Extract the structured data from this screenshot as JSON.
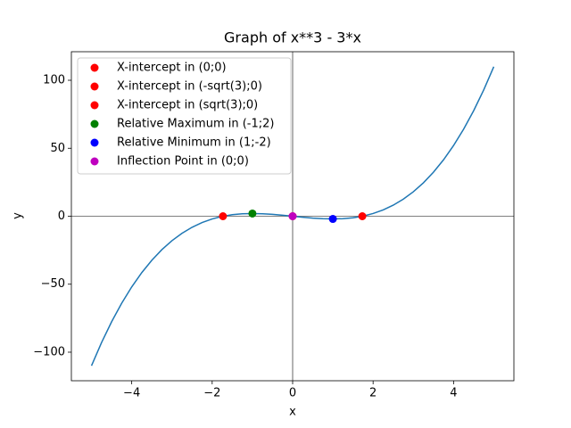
{
  "chart_data": {
    "type": "line",
    "title": "Graph of x**3 - 3*x",
    "x_label": "x",
    "y_label": "y",
    "xlim": [
      -5.5,
      5.5
    ],
    "ylim": [
      -121,
      121
    ],
    "xticks": [
      {
        "value": -4,
        "label": "−4"
      },
      {
        "value": -2,
        "label": "−2"
      },
      0,
      2,
      4
    ],
    "yticks": [
      {
        "value": -100,
        "label": "−100"
      },
      {
        "value": -50,
        "label": "−50"
      },
      0,
      50,
      100
    ],
    "zero_lines": true,
    "legend": "upper left",
    "series": [
      {
        "type": "line",
        "color": "#1f77b4",
        "x": [
          -5,
          -4.75,
          -4.5,
          -4.25,
          -4,
          -3.75,
          -3.5,
          -3.25,
          -3,
          -2.75,
          -2.5,
          -2.25,
          -2,
          -1.75,
          -1.5,
          -1.25,
          -1,
          -0.75,
          -0.5,
          -0.25,
          0,
          0.25,
          0.5,
          0.75,
          1,
          1.25,
          1.5,
          1.75,
          2,
          2.25,
          2.5,
          2.75,
          3,
          3.25,
          3.5,
          3.75,
          4,
          4.25,
          4.5,
          4.75,
          5
        ],
        "values": [
          -110,
          -92.921875,
          -77.625,
          -64.015625,
          -52,
          -41.484375,
          -32.375,
          -24.578125,
          -18,
          -12.546875,
          -8.125,
          -4.640625,
          -2,
          -0.109375,
          1.125,
          1.796875,
          2,
          1.828125,
          1.375,
          0.734375,
          0,
          -0.734375,
          -1.375,
          -1.828125,
          -2,
          -1.796875,
          -1.125,
          0.109375,
          2,
          4.640625,
          8.125,
          12.546875,
          18,
          24.578125,
          32.375,
          41.484375,
          52,
          64.015625,
          77.625,
          92.921875,
          110
        ]
      },
      {
        "type": "scatter",
        "name": "X-intercept in (0;0)",
        "color": "#ff0000",
        "x": [
          0
        ],
        "values": [
          0
        ]
      },
      {
        "type": "scatter",
        "name": "X-intercept in (-sqrt(3);0)",
        "color": "#ff0000",
        "x": [
          -1.732
        ],
        "values": [
          0
        ]
      },
      {
        "type": "scatter",
        "name": "X-intercept in (sqrt(3);0)",
        "color": "#ff0000",
        "x": [
          1.732
        ],
        "values": [
          0
        ]
      },
      {
        "type": "scatter",
        "name": "Relative Maximum in (-1;2)",
        "color": "#008000",
        "x": [
          -1
        ],
        "values": [
          2
        ]
      },
      {
        "type": "scatter",
        "name": "Relative Minimum in (1;-2)",
        "color": "#0000ff",
        "x": [
          1
        ],
        "values": [
          -2
        ]
      },
      {
        "type": "scatter",
        "name": "Inflection Point in (0;0)",
        "color": "#bf00bf",
        "x": [
          0
        ],
        "values": [
          0
        ]
      }
    ]
  }
}
